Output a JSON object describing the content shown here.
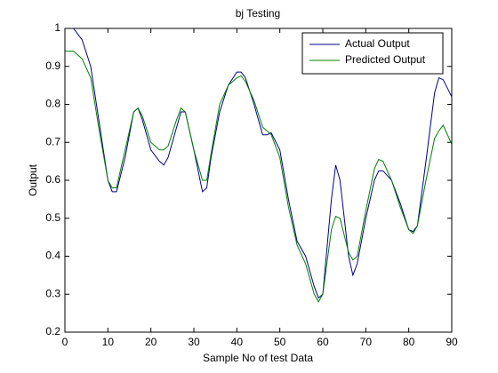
{
  "chart_data": {
    "type": "line",
    "title": "bj Testing",
    "xlabel": "Sample No of test Data",
    "ylabel": "Output",
    "x": [
      0,
      2,
      4,
      6,
      8,
      10,
      11,
      12,
      14,
      16,
      17,
      18,
      20,
      22,
      23,
      24,
      26,
      27,
      28,
      30,
      32,
      33,
      34,
      36,
      38,
      40,
      41,
      42,
      44,
      46,
      47,
      48,
      50,
      52,
      54,
      56,
      58,
      59,
      60,
      62,
      63,
      64,
      66,
      67,
      68,
      70,
      72,
      73,
      74,
      76,
      78,
      80,
      81,
      82,
      84,
      86,
      87,
      88,
      90
    ],
    "series": [
      {
        "name": "Actual Output",
        "color": "#00008b",
        "values": [
          1.0,
          1.0,
          0.97,
          0.9,
          0.75,
          0.6,
          0.57,
          0.57,
          0.66,
          0.78,
          0.79,
          0.76,
          0.68,
          0.65,
          0.64,
          0.66,
          0.74,
          0.78,
          0.78,
          0.68,
          0.57,
          0.58,
          0.66,
          0.78,
          0.85,
          0.885,
          0.885,
          0.87,
          0.8,
          0.72,
          0.72,
          0.725,
          0.68,
          0.55,
          0.44,
          0.4,
          0.32,
          0.29,
          0.3,
          0.55,
          0.64,
          0.6,
          0.4,
          0.35,
          0.38,
          0.5,
          0.6,
          0.625,
          0.625,
          0.6,
          0.54,
          0.47,
          0.465,
          0.48,
          0.65,
          0.83,
          0.87,
          0.865,
          0.82
        ]
      },
      {
        "name": "Predicted Output",
        "color": "#008000",
        "values": [
          0.94,
          0.94,
          0.92,
          0.87,
          0.73,
          0.6,
          0.58,
          0.58,
          0.68,
          0.78,
          0.79,
          0.77,
          0.7,
          0.68,
          0.68,
          0.69,
          0.76,
          0.79,
          0.78,
          0.68,
          0.6,
          0.6,
          0.67,
          0.8,
          0.85,
          0.87,
          0.875,
          0.86,
          0.81,
          0.74,
          0.73,
          0.72,
          0.66,
          0.53,
          0.43,
          0.38,
          0.3,
          0.28,
          0.3,
          0.47,
          0.505,
          0.5,
          0.41,
          0.39,
          0.4,
          0.52,
          0.63,
          0.655,
          0.65,
          0.6,
          0.53,
          0.47,
          0.46,
          0.48,
          0.6,
          0.71,
          0.73,
          0.745,
          0.695
        ]
      }
    ],
    "xlim": [
      0,
      90
    ],
    "ylim": [
      0.2,
      1
    ],
    "xticks": [
      0,
      10,
      20,
      30,
      40,
      50,
      60,
      70,
      80,
      90
    ],
    "yticks": [
      0.2,
      0.3,
      0.4,
      0.5,
      0.6,
      0.7,
      0.8,
      0.9,
      1
    ],
    "grid": false,
    "legend": "top-right"
  }
}
